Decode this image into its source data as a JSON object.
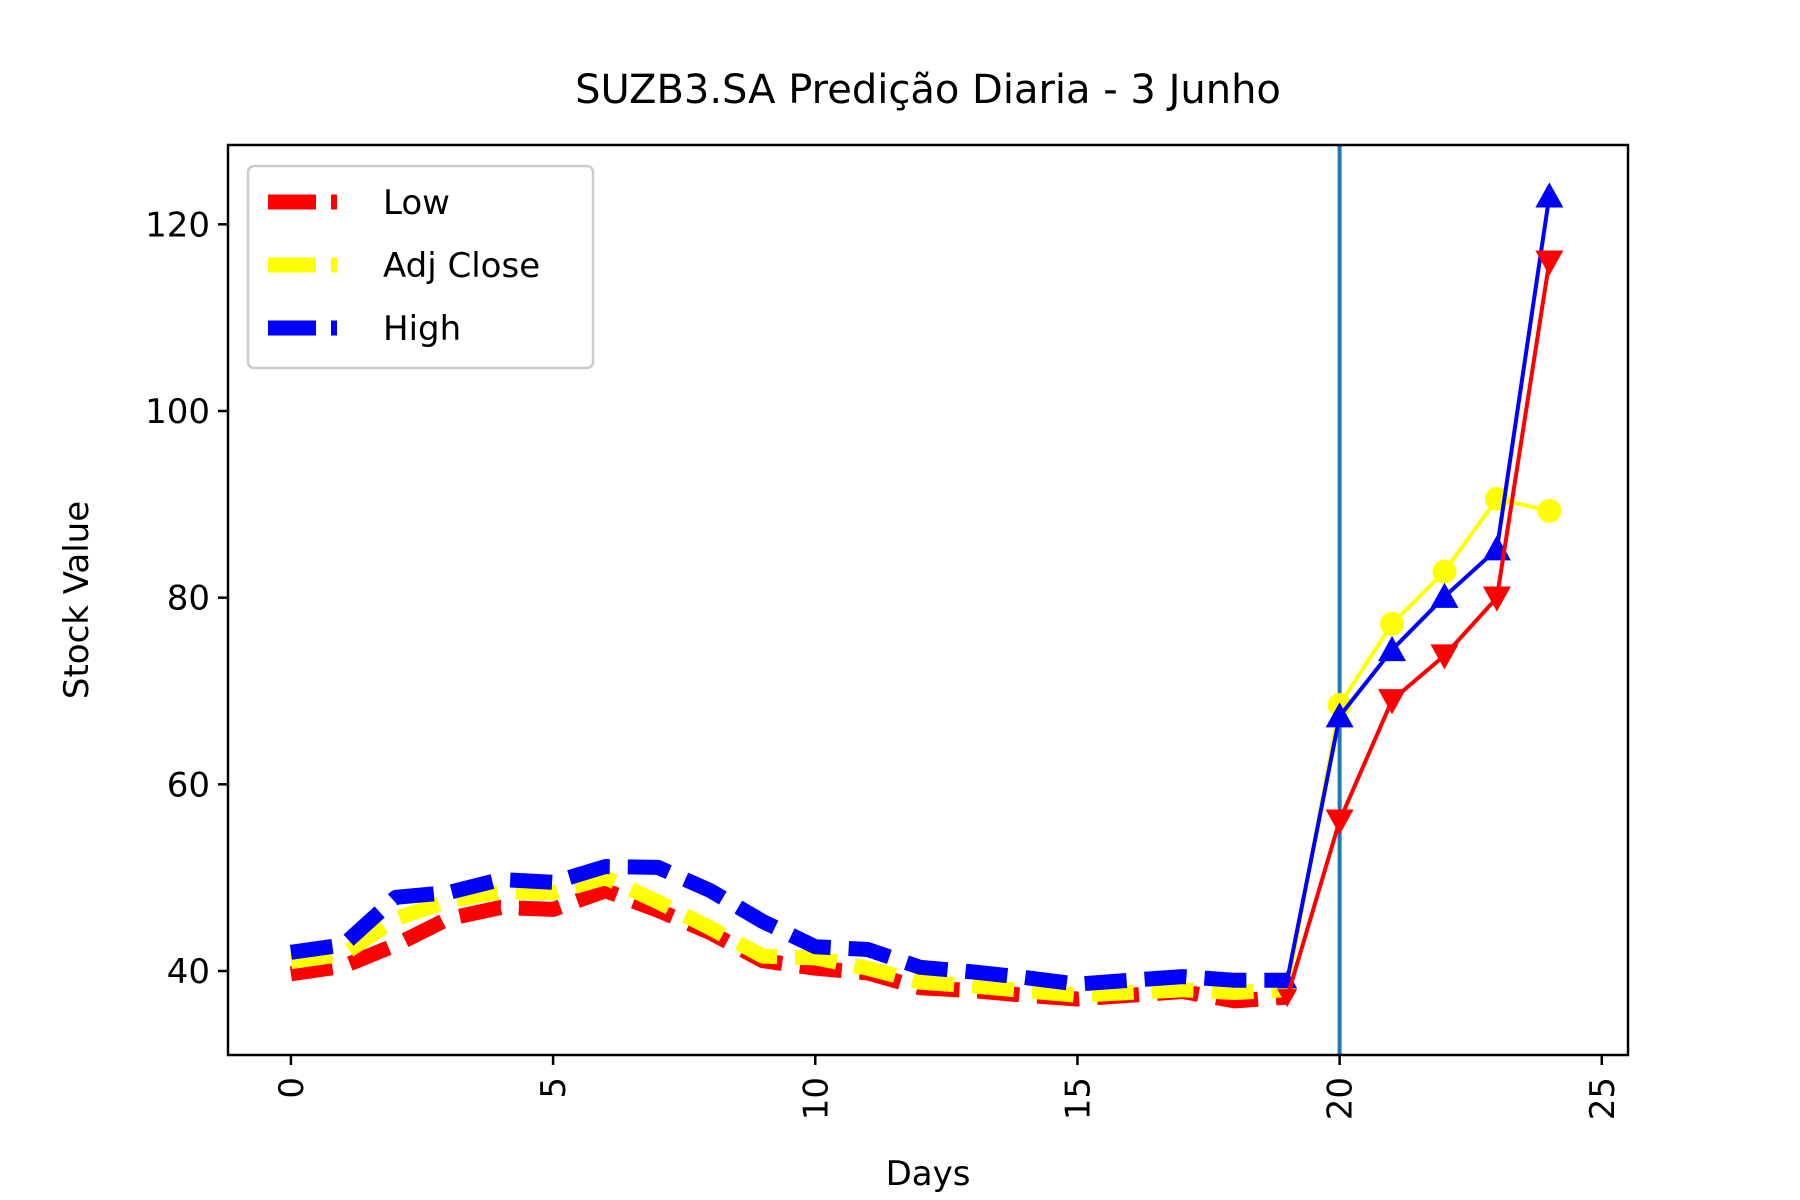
{
  "chart_data": {
    "type": "line",
    "title": "SUZB3.SA Predição Diaria - 3 Junho",
    "xlabel": "Days",
    "ylabel": "Stock Value",
    "xlim": [
      -1.2,
      25.5
    ],
    "ylim": [
      31,
      128.5
    ],
    "xticks": [
      0,
      5,
      10,
      15,
      20,
      25
    ],
    "xtick_labels": [
      "0",
      "5",
      "10",
      "15",
      "20",
      "25"
    ],
    "xtick_rotation": "vertical",
    "yticks": [
      40,
      60,
      80,
      100,
      120
    ],
    "ytick_labels": [
      "40",
      "60",
      "80",
      "100",
      "120"
    ],
    "legend_position": "top-left",
    "vertical_line": {
      "x": 20,
      "color": "#1f77b4"
    },
    "historical_series": [
      {
        "name": "Low",
        "color": "#ff0000",
        "x": [
          0,
          1,
          2,
          3,
          4,
          5,
          6,
          7,
          8,
          9,
          10,
          11,
          12,
          13,
          14,
          15,
          16,
          17,
          18,
          19
        ],
        "values": [
          39.7,
          40.5,
          42.8,
          45.6,
          46.8,
          46.6,
          48.6,
          46.5,
          44.1,
          41.1,
          40.3,
          39.8,
          38.2,
          37.9,
          37.4,
          37.0,
          37.4,
          37.8,
          36.8,
          37.2
        ]
      },
      {
        "name": "Adj Close",
        "color": "#ffff00",
        "x": [
          0,
          1,
          2,
          3,
          4,
          5,
          6,
          7,
          8,
          9,
          10,
          11,
          12,
          13,
          14,
          15,
          16,
          17,
          18,
          19
        ],
        "values": [
          41.0,
          41.8,
          45.6,
          47.5,
          48.5,
          48.4,
          50.0,
          47.4,
          44.6,
          41.6,
          41.4,
          40.3,
          38.8,
          38.4,
          37.9,
          37.4,
          37.7,
          38.0,
          37.7,
          38.0
        ]
      },
      {
        "name": "High",
        "color": "#0000ff",
        "x": [
          0,
          1,
          2,
          3,
          4,
          5,
          6,
          7,
          8,
          9,
          10,
          11,
          12,
          13,
          14,
          15,
          16,
          17,
          18,
          19
        ],
        "values": [
          42.0,
          42.8,
          47.9,
          48.4,
          49.8,
          49.5,
          51.2,
          51.1,
          48.6,
          45.3,
          42.6,
          42.3,
          40.4,
          39.9,
          39.3,
          38.6,
          39.0,
          39.4,
          39.0,
          39.0
        ]
      }
    ],
    "prediction_series": [
      {
        "of": "Adj Close",
        "color": "#ffff00",
        "marker": "circle",
        "x": [
          19,
          20,
          21,
          22,
          23,
          24
        ],
        "values": [
          38.0,
          68.5,
          77.2,
          82.8,
          90.6,
          89.3
        ]
      },
      {
        "of": "High",
        "color": "#0000ff",
        "marker": "triangle-up",
        "x": [
          19,
          20,
          21,
          22,
          23,
          24
        ],
        "values": [
          39.0,
          67.3,
          74.4,
          80.1,
          85.2,
          123.0
        ]
      },
      {
        "of": "Low",
        "color": "#ff0000",
        "marker": "triangle-down",
        "x": [
          19,
          20,
          21,
          22,
          23,
          24
        ],
        "values": [
          37.2,
          56.1,
          69.0,
          73.8,
          80.0,
          116.0
        ]
      }
    ]
  }
}
